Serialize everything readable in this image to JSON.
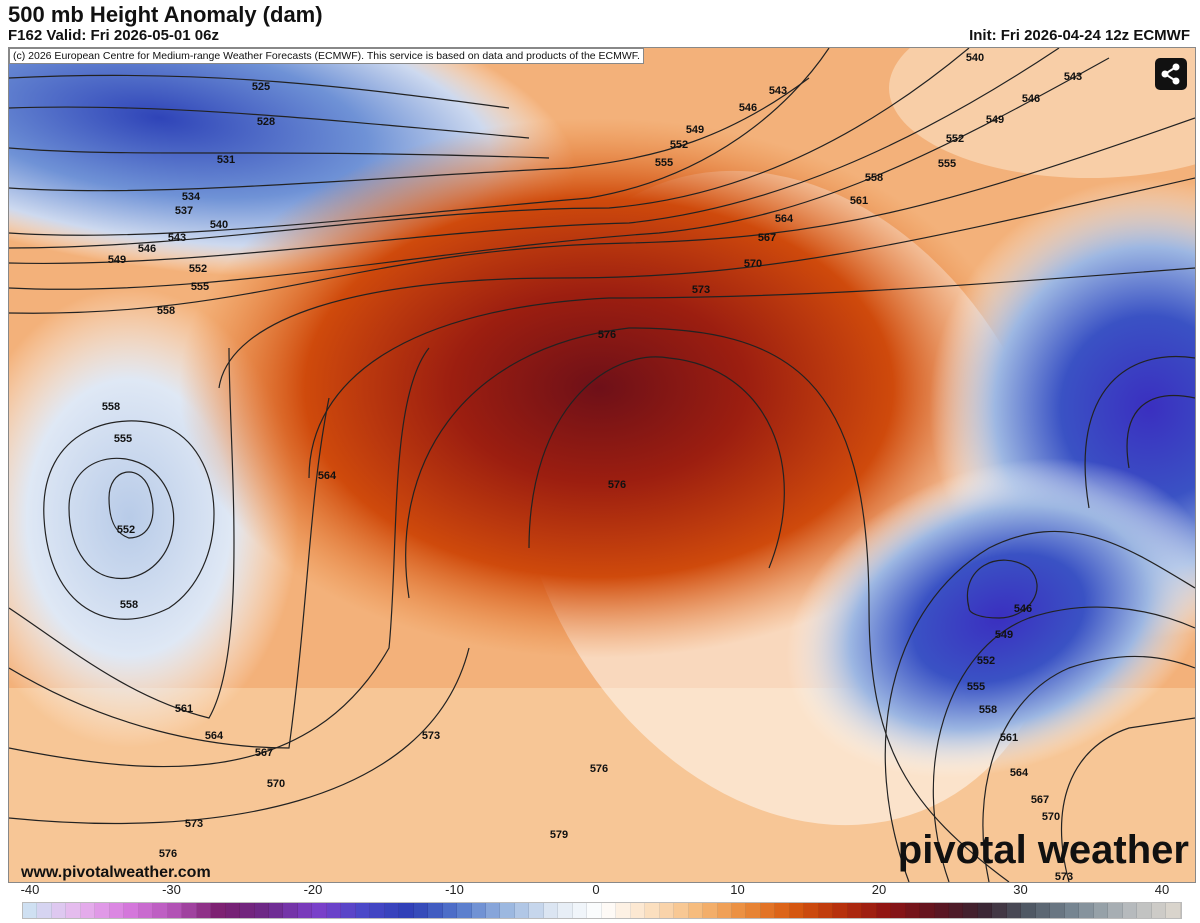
{
  "header": {
    "title": "500 mb Height Anomaly (dam)",
    "valid": "F162 Valid: Fri 2026-05-01 06z",
    "init": "Init: Fri 2026-04-24 12z ECMWF"
  },
  "map": {
    "copyright": "(c) 2026 European Centre for Medium-range Weather Forecasts (ECMWF). This service is based on data and products of the ECMWF.",
    "share_icon": "share-icon",
    "website": "www.pivotalweather.com",
    "logo": "pivotal weather",
    "contour_labels": [
      "525",
      "528",
      "531",
      "534",
      "537",
      "540",
      "543",
      "546",
      "549",
      "552",
      "555",
      "558",
      "558",
      "555",
      "552",
      "558",
      "561",
      "564",
      "567",
      "570",
      "573",
      "576",
      "564",
      "573",
      "576",
      "576",
      "573",
      "570",
      "567",
      "564",
      "561",
      "558",
      "555",
      "552",
      "549",
      "546",
      "543",
      "540",
      "543",
      "546",
      "549",
      "552",
      "555",
      "576",
      "579",
      "546",
      "549",
      "552",
      "555",
      "558",
      "561",
      "564",
      "567",
      "570",
      "573"
    ]
  },
  "colorbar": {
    "ticks": [
      "-40",
      "-30",
      "-20",
      "-10",
      "0",
      "10",
      "20",
      "30",
      "40"
    ],
    "range": [
      -40,
      40
    ],
    "colors": [
      "#cfe0f2",
      "#e7b8ee",
      "#d97ce0",
      "#b454b8",
      "#7a1e6e",
      "#6c2a8a",
      "#7d3fc9",
      "#4a48c8",
      "#2e3fb6",
      "#5478cc",
      "#9ab7df",
      "#dfe8f3",
      "#ffffff",
      "#fbe1c4",
      "#f6bb7c",
      "#eb8c3c",
      "#d85a10",
      "#b8300c",
      "#8f1414",
      "#5e1420",
      "#3a2432",
      "#505a66",
      "#7c8b97",
      "#b3b8bb",
      "#d9d4cc"
    ]
  }
}
